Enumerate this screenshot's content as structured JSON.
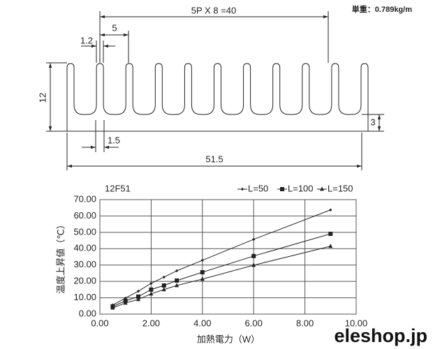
{
  "drawing": {
    "pitch": "5P X 8 =40",
    "weight": "単重：0.789kg/m",
    "fin_pitch": "5",
    "fin_width": "1.2",
    "height": "12",
    "gap_width": "1.5",
    "base": "3",
    "width": "51.5"
  },
  "chart_data": {
    "type": "line",
    "title": "12F51",
    "x_label": "加熱電力（W）",
    "y_label": "温度上昇値（℃）",
    "x": [
      0.5,
      1,
      1.5,
      2,
      2.5,
      3,
      4,
      6,
      9
    ],
    "series": [
      {
        "name": "L=50",
        "color": "#222222",
        "marker": "diamond",
        "values": [
          5.6,
          9.8,
          14,
          18.8,
          22.6,
          26.5,
          32.9,
          45.7,
          63.7
        ]
      },
      {
        "name": "L=100",
        "color": "#222222",
        "marker": "square",
        "values": [
          4.7,
          8.1,
          10.7,
          15,
          17.5,
          20.5,
          25.6,
          35.5,
          49.1
        ]
      },
      {
        "name": "L=150",
        "color": "#222222",
        "marker": "triangle",
        "values": [
          3.8,
          6.8,
          9,
          12.4,
          15,
          17.5,
          21.4,
          29.9,
          41.5
        ]
      }
    ],
    "xlim": [
      0,
      10
    ],
    "xticks": [
      {
        "value": 0,
        "label": "0.00"
      },
      {
        "value": 2,
        "label": "2.00"
      },
      {
        "value": 4,
        "label": "4.00"
      },
      {
        "value": 6,
        "label": "6.00"
      },
      {
        "value": 8,
        "label": "8.00"
      },
      {
        "value": 10,
        "label": "10.00"
      }
    ],
    "ylim": [
      0,
      70
    ],
    "yticks": [
      {
        "value": 0,
        "label": "0.00"
      },
      {
        "value": 10,
        "label": "10.00"
      },
      {
        "value": 20,
        "label": "20.00"
      },
      {
        "value": 30,
        "label": "30.00"
      },
      {
        "value": 40,
        "label": "40.00"
      },
      {
        "value": 50,
        "label": "50.00"
      },
      {
        "value": 60,
        "label": "60.00"
      },
      {
        "value": 70,
        "label": "70.00"
      }
    ],
    "grid": true,
    "watermark": "eleshop.jp"
  }
}
